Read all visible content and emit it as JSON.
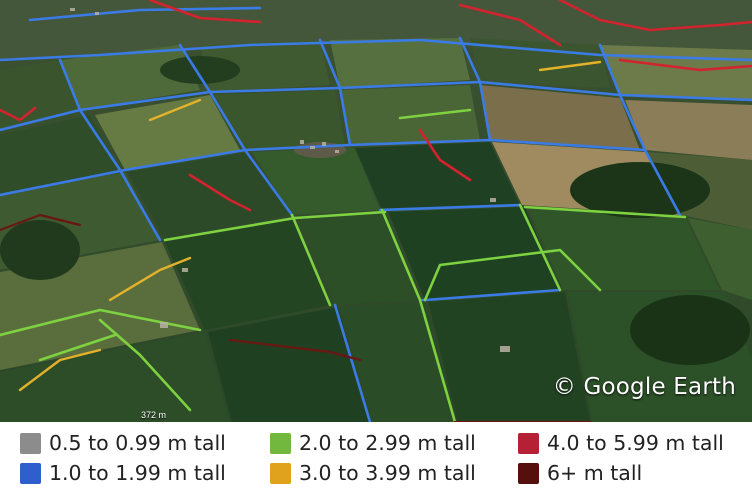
{
  "map": {
    "copyright": "© Google Earth",
    "scale_label": "372 m"
  },
  "legend": {
    "items": [
      {
        "label": "0.5 to 0.99 m tall",
        "color": "#8c8c8c"
      },
      {
        "label": "1.0 to 1.99 m tall",
        "color": "#2f5fcc"
      },
      {
        "label": "2.0 to 2.99 m tall",
        "color": "#72b83e"
      },
      {
        "label": "3.0 to 3.99 m tall",
        "color": "#e0a21c"
      },
      {
        "label": "4.0 to 5.99 m tall",
        "color": "#b62035"
      },
      {
        "label": "6+ m tall",
        "color": "#55100e"
      }
    ]
  }
}
